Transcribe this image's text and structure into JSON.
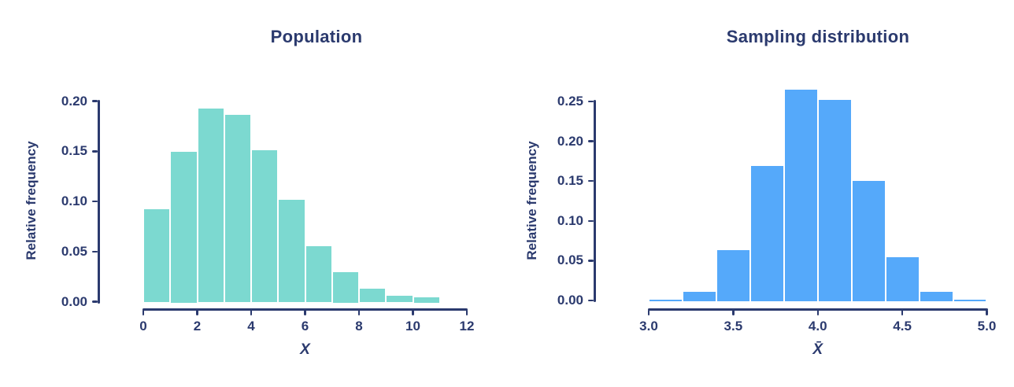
{
  "figure": {
    "background": "#ffffff"
  },
  "colors": {
    "navy": "#2b3a6e",
    "teal": "#7cd9d0",
    "blue": "#55a9fa",
    "background": "#ffffff"
  },
  "chart_data": [
    {
      "type": "bar",
      "subtype": "histogram",
      "title": "Population",
      "ylabel": "Relative frequency",
      "xlabel": "X",
      "bar_color": "#7cd9d0",
      "xlim": [
        0,
        12
      ],
      "ylim": [
        0,
        0.2
      ],
      "bin_start": 0,
      "bin_width": 1,
      "values": [
        0.093,
        0.15,
        0.193,
        0.187,
        0.152,
        0.102,
        0.056,
        0.03,
        0.014,
        0.007,
        0.005
      ],
      "x_tick_values": [
        0,
        2,
        4,
        6,
        8,
        10,
        12
      ],
      "x_tick_labels": [
        "0",
        "2",
        "4",
        "6",
        "8",
        "10",
        "12"
      ],
      "y_tick_values": [
        0,
        0.05,
        0.1,
        0.15,
        0.2
      ],
      "y_tick_labels": [
        "0.00",
        "0.05",
        "0.10",
        "0.15",
        "0.20"
      ],
      "grid": false,
      "legend": null
    },
    {
      "type": "bar",
      "subtype": "histogram",
      "title": "Sampling distribution",
      "ylabel": "Relative frequency",
      "xlabel": "X̄",
      "bar_color": "#55a9fa",
      "xlim": [
        3.0,
        5.0
      ],
      "ylim": [
        0,
        0.25
      ],
      "bin_start": 3.0,
      "bin_width": 0.2,
      "values": [
        0.002,
        0.012,
        0.065,
        0.17,
        0.266,
        0.253,
        0.152,
        0.056,
        0.012,
        0.002
      ],
      "x_tick_values": [
        3.0,
        3.5,
        4.0,
        4.5,
        5.0
      ],
      "x_tick_labels": [
        "3.0",
        "3.5",
        "4.0",
        "4.5",
        "5.0"
      ],
      "y_tick_values": [
        0,
        0.05,
        0.1,
        0.15,
        0.2,
        0.25
      ],
      "y_tick_labels": [
        "0.00",
        "0.05",
        "0.10",
        "0.15",
        "0.20",
        "0.25"
      ],
      "grid": false,
      "legend": null
    }
  ]
}
